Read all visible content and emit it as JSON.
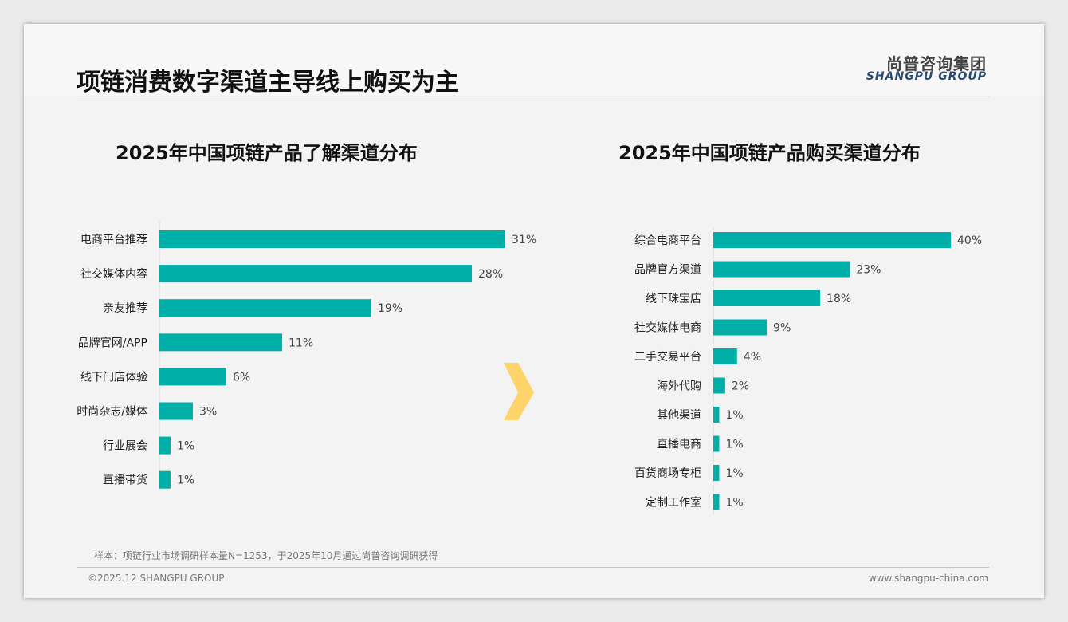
{
  "header": {
    "title": "项链消费数字渠道主导线上购买为主",
    "logo_cn": "尚普咨询集团",
    "logo_en": "SHANGPU GROUP"
  },
  "footer": {
    "note": "样本：项链行业市场调研样本量N=1253，于2025年10月通过尚普咨询调研获得",
    "copyright": "©2025.12 SHANGPU GROUP",
    "url": "www.shangpu-china.com"
  },
  "watermark": "尚普咨询集团 SHANGPU GROUP",
  "colors": {
    "bar": "#00b0a8",
    "arrow": "#fdd36a"
  },
  "chart_data": [
    {
      "type": "bar",
      "orientation": "horizontal",
      "title": "2025年中国项链产品了解渠道分布",
      "categories": [
        "电商平台推荐",
        "社交媒体内容",
        "亲友推荐",
        "品牌官网/APP",
        "线下门店体验",
        "时尚杂志/媒体",
        "行业展会",
        "直播带货"
      ],
      "values": [
        31,
        28,
        19,
        11,
        6,
        3,
        1,
        1
      ],
      "labels": [
        "31%",
        "28%",
        "19%",
        "11%",
        "6%",
        "3%",
        "1%",
        "1%"
      ],
      "unit": "%"
    },
    {
      "type": "bar",
      "orientation": "horizontal",
      "title": "2025年中国项链产品购买渠道分布",
      "categories": [
        "综合电商平台",
        "品牌官方渠道",
        "线下珠宝店",
        "社交媒体电商",
        "二手交易平台",
        "海外代购",
        "其他渠道",
        "直播电商",
        "百货商场专柜",
        "定制工作室"
      ],
      "values": [
        40,
        23,
        18,
        9,
        4,
        2,
        1,
        1,
        1,
        1
      ],
      "labels": [
        "40%",
        "23%",
        "18%",
        "9%",
        "4%",
        "2%",
        "1%",
        "1%",
        "1%",
        "1%"
      ],
      "unit": "%"
    }
  ]
}
